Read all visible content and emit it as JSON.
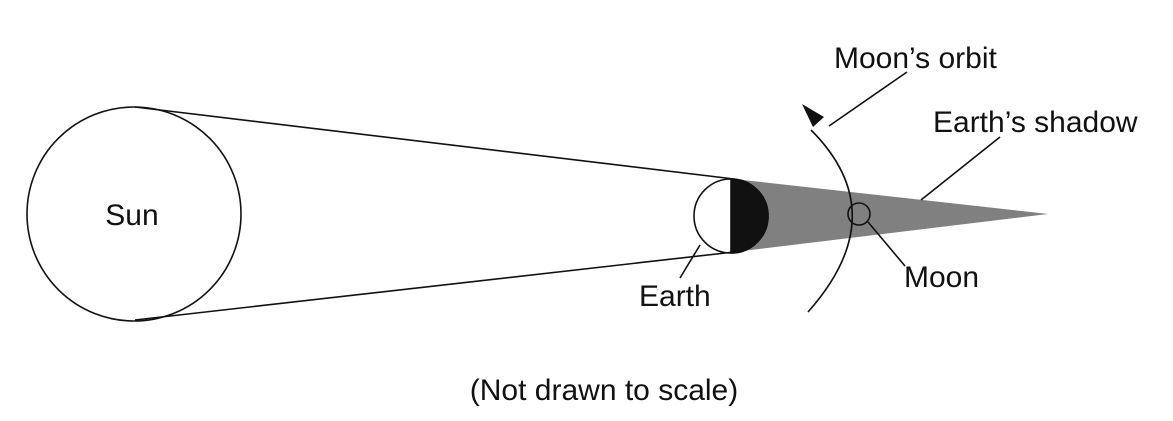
{
  "labels": {
    "sun": "Sun",
    "earth": "Earth",
    "moon": "Moon",
    "moon_orbit": "Moon’s orbit",
    "earth_shadow": "Earth’s shadow",
    "caption": "(Not drawn to scale)"
  },
  "colors": {
    "line": "#111111",
    "shadow": "#808080",
    "earth_night": "#111111",
    "background": "#ffffff"
  }
}
